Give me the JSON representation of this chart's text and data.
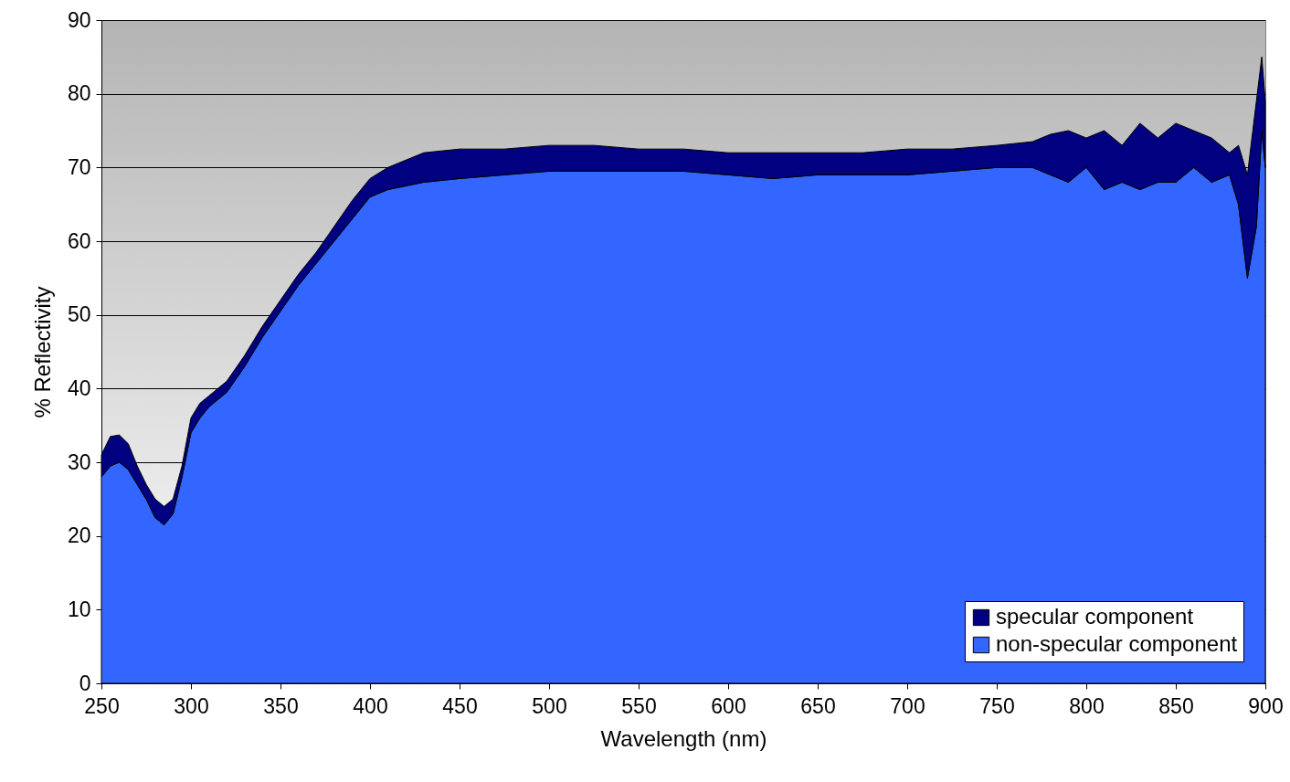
{
  "chart_data": {
    "type": "area",
    "stacked": true,
    "xlabel": "Wavelength  (nm)",
    "ylabel": "% Reflectivity",
    "x": [
      250,
      255,
      260,
      265,
      270,
      275,
      280,
      285,
      290,
      295,
      300,
      305,
      310,
      320,
      330,
      340,
      350,
      360,
      370,
      380,
      390,
      400,
      410,
      420,
      430,
      450,
      475,
      500,
      525,
      550,
      575,
      600,
      625,
      650,
      675,
      700,
      725,
      750,
      770,
      780,
      790,
      800,
      810,
      820,
      830,
      840,
      850,
      860,
      870,
      880,
      885,
      890,
      895,
      898,
      900
    ],
    "series": [
      {
        "name": "non-specular component",
        "color": "#3366ff",
        "values": [
          28,
          29.5,
          30,
          29,
          27,
          25,
          22.5,
          21.5,
          23,
          28,
          34,
          36,
          37.5,
          39.5,
          43,
          47,
          50.5,
          54,
          57,
          60,
          63,
          66,
          67,
          67.5,
          68,
          68.5,
          69,
          69.5,
          69.5,
          69.5,
          69.5,
          69,
          68.5,
          69,
          69,
          69,
          69.5,
          70,
          70,
          69,
          68,
          70,
          67,
          68,
          67,
          68,
          68,
          70,
          68,
          69,
          65,
          55,
          62,
          75,
          70
        ]
      },
      {
        "name": "specular component",
        "color": "#000080",
        "values": [
          3,
          4,
          3.7,
          3.5,
          2.5,
          2,
          2.5,
          2.5,
          2,
          1.5,
          2,
          2,
          1.5,
          1.5,
          1.5,
          1.5,
          1.5,
          1.5,
          1.5,
          2,
          2.5,
          2.5,
          3,
          3.5,
          4,
          4,
          3.5,
          3.5,
          3.5,
          3,
          3,
          3,
          3.5,
          3,
          3,
          3.5,
          3,
          3,
          3.5,
          5.5,
          7,
          4,
          8,
          5,
          9,
          6,
          8,
          5,
          6,
          3,
          8,
          14,
          17,
          10,
          9
        ]
      }
    ],
    "xlim": [
      250,
      900
    ],
    "ylim": [
      0,
      90
    ],
    "xticks": [
      250,
      300,
      350,
      400,
      450,
      500,
      550,
      600,
      650,
      700,
      750,
      800,
      850,
      900
    ],
    "yticks": [
      0,
      10,
      20,
      30,
      40,
      50,
      60,
      70,
      80,
      90
    ],
    "grid": "y",
    "legend": "bottom right"
  }
}
